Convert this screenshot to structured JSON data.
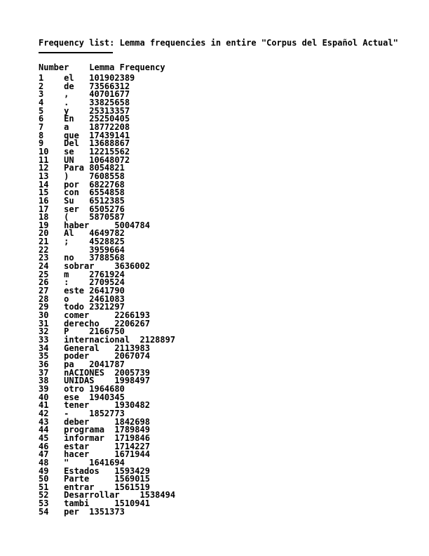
{
  "page": {
    "title": "Frequency list: Lemma frequencies in entire \"Corpus del Español Actual\"",
    "table": {
      "header": {
        "number_label": "Number",
        "lemma_label": "Lemma",
        "frequency_label": "Frequency"
      },
      "rows": [
        {
          "number": 1,
          "lemma": "el",
          "frequency": 101902389
        },
        {
          "number": 2,
          "lemma": "de",
          "frequency": 73566312
        },
        {
          "number": 3,
          "lemma": ",",
          "frequency": 40701677
        },
        {
          "number": 4,
          "lemma": ".",
          "frequency": 33825658
        },
        {
          "number": 5,
          "lemma": "y",
          "frequency": 25313357
        },
        {
          "number": 6,
          "lemma": "En",
          "frequency": 25250405
        },
        {
          "number": 7,
          "lemma": "a",
          "frequency": 18772208
        },
        {
          "number": 8,
          "lemma": "que",
          "frequency": 17439141
        },
        {
          "number": 9,
          "lemma": "Del",
          "frequency": 13688867
        },
        {
          "number": 10,
          "lemma": "se",
          "frequency": 12215562
        },
        {
          "number": 11,
          "lemma": "UN",
          "frequency": 10648072
        },
        {
          "number": 12,
          "lemma": "Para",
          "frequency": 8054821
        },
        {
          "number": 13,
          "lemma": ")",
          "frequency": 7608558
        },
        {
          "number": 14,
          "lemma": "por",
          "frequency": 6822768
        },
        {
          "number": 15,
          "lemma": "con",
          "frequency": 6554858
        },
        {
          "number": 16,
          "lemma": "Su",
          "frequency": 6512385
        },
        {
          "number": 17,
          "lemma": "ser",
          "frequency": 6505276
        },
        {
          "number": 18,
          "lemma": "(",
          "frequency": 5870587
        },
        {
          "number": 19,
          "lemma": "haber",
          "frequency": 5004784
        },
        {
          "number": 20,
          "lemma": "Al",
          "frequency": 4649782
        },
        {
          "number": 21,
          "lemma": ";",
          "frequency": 4528825
        },
        {
          "number": 22,
          "lemma": "",
          "frequency": 3959664
        },
        {
          "number": 23,
          "lemma": "no",
          "frequency": 3788568
        },
        {
          "number": 24,
          "lemma": "sobrar",
          "frequency": 3636002
        },
        {
          "number": 25,
          "lemma": "m",
          "frequency": 2761924
        },
        {
          "number": 26,
          "lemma": ":",
          "frequency": 2709524
        },
        {
          "number": 27,
          "lemma": "este",
          "frequency": 2641790
        },
        {
          "number": 28,
          "lemma": "o",
          "frequency": 2461083
        },
        {
          "number": 29,
          "lemma": "todo",
          "frequency": 2321297
        },
        {
          "number": 30,
          "lemma": "comer",
          "frequency": 2266193
        },
        {
          "number": 31,
          "lemma": "derecho",
          "frequency": 2206267
        },
        {
          "number": 32,
          "lemma": "P",
          "frequency": 2166750
        },
        {
          "number": 33,
          "lemma": "internacional",
          "frequency": 2128897
        },
        {
          "number": 34,
          "lemma": "General",
          "frequency": 2113983
        },
        {
          "number": 35,
          "lemma": "poder",
          "frequency": 2067074
        },
        {
          "number": 36,
          "lemma": "pa",
          "frequency": 2041787
        },
        {
          "number": 37,
          "lemma": "nACIONES",
          "frequency": 2005739
        },
        {
          "number": 38,
          "lemma": "UNIDAS",
          "frequency": 1998497
        },
        {
          "number": 39,
          "lemma": "otro",
          "frequency": 1964680
        },
        {
          "number": 40,
          "lemma": "ese",
          "frequency": 1940345
        },
        {
          "number": 41,
          "lemma": "tener",
          "frequency": 1930482
        },
        {
          "number": 42,
          "lemma": "-",
          "frequency": 1852773
        },
        {
          "number": 43,
          "lemma": "deber",
          "frequency": 1842698
        },
        {
          "number": 44,
          "lemma": "programa",
          "frequency": 1789849
        },
        {
          "number": 45,
          "lemma": "informar",
          "frequency": 1719846
        },
        {
          "number": 46,
          "lemma": "estar",
          "frequency": 1714227
        },
        {
          "number": 47,
          "lemma": "hacer",
          "frequency": 1671944
        },
        {
          "number": 48,
          "lemma": "\"",
          "frequency": 1641694
        },
        {
          "number": 49,
          "lemma": "Estados",
          "frequency": 1593429
        },
        {
          "number": 50,
          "lemma": "Parte",
          "frequency": 1569015
        },
        {
          "number": 51,
          "lemma": "entrar",
          "frequency": 1561519
        },
        {
          "number": 52,
          "lemma": "Desarrollar",
          "frequency": 1538494
        },
        {
          "number": 53,
          "lemma": "tambi",
          "frequency": 1510941
        },
        {
          "number": 54,
          "lemma": "per",
          "frequency": 1351373
        }
      ]
    }
  }
}
